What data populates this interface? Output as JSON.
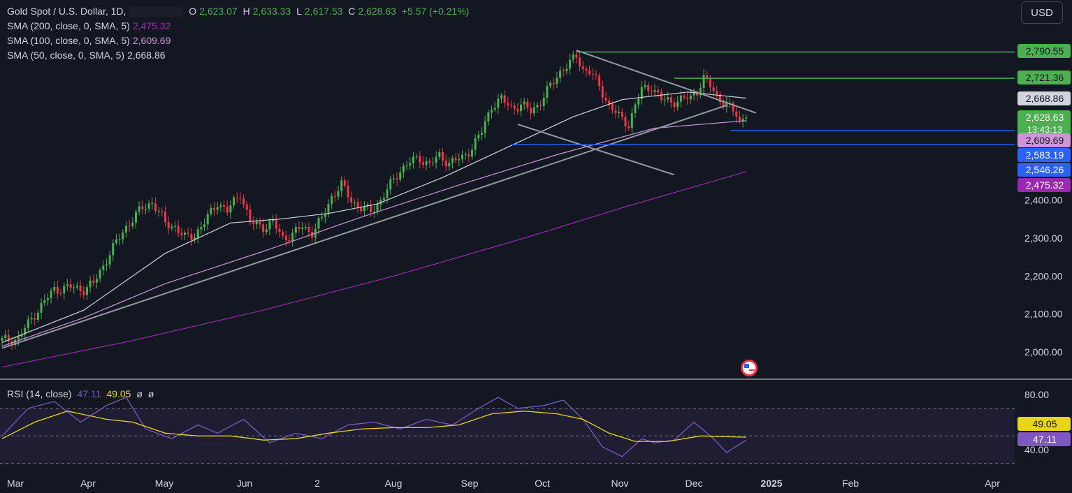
{
  "header": {
    "symbol": "Gold Spot / U.S. Dollar, 1D,",
    "open_label": "O",
    "open": "2,623.07",
    "high_label": "H",
    "high": "2,633.33",
    "low_label": "L",
    "low": "2,617.53",
    "close_label": "C",
    "close": "2,628.63",
    "change": "+5.57 (+0.21%)"
  },
  "indicators": [
    {
      "label": "SMA (200, close, 0, SMA, 5)",
      "value": "2,475.32",
      "color": "#9c27b0"
    },
    {
      "label": "SMA (100, close, 0, SMA, 5)",
      "value": "2,609.69",
      "color": "#ce93d8"
    },
    {
      "label": "SMA (50, close, 0, SMA, 5)",
      "value": "2,668.86",
      "color": "#d1d4dc"
    }
  ],
  "currency_button": "USD",
  "rsi_legend": {
    "label": "RSI (14, close)",
    "rsi": "47.11",
    "ma": "49.05",
    "extra1": "ø",
    "extra2": "ø"
  },
  "colors": {
    "background": "#131722",
    "up": "#4caf50",
    "down": "#f23645",
    "sma200": "#9c27b0",
    "sma100": "#ce93d8",
    "sma50": "#d1d4dc",
    "rsi": "#7e57c2",
    "rsi_ma": "#e8d419",
    "level_green": "#4caf50",
    "level_blue": "#2962ff"
  },
  "chart_data": [
    {
      "type": "candlestick",
      "title": "Gold Spot / U.S. Dollar, 1D",
      "x_ticks": [
        "Mar",
        "Apr",
        "May",
        "Jun",
        "2",
        "Aug",
        "Sep",
        "Oct",
        "Nov",
        "Dec",
        "2025",
        "Feb",
        "Apr"
      ],
      "y_ticks": [
        "2,000.00",
        "2,100.00",
        "2,200.00",
        "2,300.00",
        "2,400.00"
      ],
      "ylim": [
        1970,
        2830
      ],
      "price_path": [
        [
          0,
          2030
        ],
        [
          5,
          2035
        ],
        [
          10,
          2100
        ],
        [
          16,
          2165
        ],
        [
          21,
          2170
        ],
        [
          25,
          2165
        ],
        [
          28,
          2180
        ],
        [
          33,
          2260
        ],
        [
          38,
          2330
        ],
        [
          43,
          2380
        ],
        [
          46,
          2395
        ],
        [
          50,
          2340
        ],
        [
          53,
          2330
        ],
        [
          56,
          2300
        ],
        [
          59,
          2310
        ],
        [
          62,
          2340
        ],
        [
          66,
          2395
        ],
        [
          69,
          2370
        ],
        [
          73,
          2420
        ],
        [
          76,
          2340
        ],
        [
          80,
          2330
        ],
        [
          83,
          2340
        ],
        [
          86,
          2300
        ],
        [
          89,
          2310
        ],
        [
          92,
          2330
        ],
        [
          95,
          2315
        ],
        [
          98,
          2350
        ],
        [
          101,
          2410
        ],
        [
          104,
          2440
        ],
        [
          107,
          2400
        ],
        [
          110,
          2380
        ],
        [
          113,
          2370
        ],
        [
          116,
          2400
        ],
        [
          119,
          2440
        ],
        [
          122,
          2480
        ],
        [
          125,
          2500
        ],
        [
          128,
          2510
        ],
        [
          131,
          2495
        ],
        [
          134,
          2515
        ],
        [
          137,
          2500
        ],
        [
          141,
          2510
        ],
        [
          144,
          2540
        ],
        [
          147,
          2580
        ],
        [
          150,
          2650
        ],
        [
          153,
          2665
        ],
        [
          156,
          2645
        ],
        [
          159,
          2650
        ],
        [
          162,
          2635
        ],
        [
          165,
          2660
        ],
        [
          168,
          2700
        ],
        [
          171,
          2740
        ],
        [
          174,
          2760
        ],
        [
          176,
          2780
        ],
        [
          178,
          2745
        ],
        [
          180,
          2740
        ],
        [
          183,
          2700
        ],
        [
          186,
          2650
        ],
        [
          189,
          2620
        ],
        [
          192,
          2600
        ],
        [
          194,
          2650
        ],
        [
          196,
          2690
        ],
        [
          199,
          2700
        ],
        [
          202,
          2665
        ],
        [
          205,
          2660
        ],
        [
          208,
          2665
        ],
        [
          211,
          2670
        ],
        [
          213,
          2690
        ],
        [
          215,
          2720
        ],
        [
          217,
          2700
        ],
        [
          219,
          2675
        ],
        [
          222,
          2650
        ],
        [
          225,
          2625
        ],
        [
          226,
          2605
        ],
        [
          228,
          2630
        ]
      ],
      "series": [
        {
          "name": "SMA (200, close, 0, SMA, 5)",
          "values": [
            [
              0,
              1960
            ],
            [
              40,
              2030
            ],
            [
              80,
              2110
            ],
            [
              120,
              2200
            ],
            [
              160,
              2300
            ],
            [
              190,
              2380
            ],
            [
              228,
              2475.32
            ]
          ]
        },
        {
          "name": "SMA (100, close, 0, SMA, 5)",
          "values": [
            [
              0,
              2015
            ],
            [
              25,
              2090
            ],
            [
              50,
              2180
            ],
            [
              80,
              2265
            ],
            [
              110,
              2355
            ],
            [
              140,
              2440
            ],
            [
              170,
              2520
            ],
            [
              200,
              2590
            ],
            [
              228,
              2609.69
            ]
          ]
        },
        {
          "name": "SMA (50, close, 0, SMA, 5)",
          "values": [
            [
              0,
              2025
            ],
            [
              25,
              2110
            ],
            [
              50,
              2260
            ],
            [
              70,
              2340
            ],
            [
              85,
              2350
            ],
            [
              100,
              2365
            ],
            [
              115,
              2390
            ],
            [
              135,
              2460
            ],
            [
              155,
              2540
            ],
            [
              175,
              2620
            ],
            [
              190,
              2665
            ],
            [
              210,
              2685
            ],
            [
              228,
              2668.86
            ]
          ]
        }
      ],
      "trendlines": [
        {
          "from": [
            0,
            2010
          ],
          "to": [
            222,
            2650
          ]
        },
        {
          "from": [
            176,
            2795
          ],
          "to": [
            231,
            2630
          ]
        },
        {
          "from": [
            158,
            2600
          ],
          "to": [
            206,
            2467
          ]
        }
      ],
      "levels": [
        {
          "value": "2,790.55",
          "price": 2790.55,
          "kind": "resistance"
        },
        {
          "value": "2,721.36",
          "price": 2721.36,
          "kind": "resistance"
        },
        {
          "value": "2,583.19",
          "price": 2583.19,
          "kind": "support"
        },
        {
          "value": "2,546.26",
          "price": 2546.26,
          "kind": "support"
        }
      ],
      "price_labels": [
        {
          "value": "2,790.55",
          "bg": "#4caf50",
          "fg": "#131722"
        },
        {
          "value": "2,721.36",
          "bg": "#4caf50",
          "fg": "#131722"
        },
        {
          "value": "2,668.86",
          "bg": "#d1d4dc",
          "fg": "#131722"
        },
        {
          "value": "2,628.63",
          "sub": "13:43:13",
          "bg": "#4caf50",
          "fg": "#ffffff"
        },
        {
          "value": "2,609.69",
          "bg": "#ce93d8",
          "fg": "#131722"
        },
        {
          "value": "2,583.19",
          "bg": "#2962ff",
          "fg": "#ffffff"
        },
        {
          "value": "2,546.26",
          "bg": "#2962ff",
          "fg": "#ffffff"
        },
        {
          "value": "2,475.32",
          "bg": "#9c27b0",
          "fg": "#ffffff"
        }
      ]
    },
    {
      "type": "line",
      "title": "RSI (14, close)",
      "y_ticks": [
        "80.00",
        "40.00"
      ],
      "ylim": [
        30,
        90
      ],
      "band": [
        30,
        70
      ],
      "series": [
        {
          "name": "RSI",
          "values": [
            [
              0,
              50
            ],
            [
              8,
              70
            ],
            [
              16,
              75
            ],
            [
              24,
              60
            ],
            [
              32,
              72
            ],
            [
              38,
              78
            ],
            [
              44,
              55
            ],
            [
              52,
              48
            ],
            [
              60,
              58
            ],
            [
              66,
              52
            ],
            [
              74,
              62
            ],
            [
              82,
              45
            ],
            [
              90,
              52
            ],
            [
              98,
              48
            ],
            [
              106,
              58
            ],
            [
              114,
              60
            ],
            [
              122,
              55
            ],
            [
              130,
              62
            ],
            [
              138,
              58
            ],
            [
              146,
              70
            ],
            [
              152,
              78
            ],
            [
              158,
              70
            ],
            [
              166,
              72
            ],
            [
              172,
              76
            ],
            [
              178,
              62
            ],
            [
              184,
              42
            ],
            [
              190,
              35
            ],
            [
              196,
              48
            ],
            [
              200,
              45
            ],
            [
              206,
              47
            ],
            [
              212,
              60
            ],
            [
              218,
              48
            ],
            [
              222,
              38
            ],
            [
              228,
              47.11
            ]
          ]
        },
        {
          "name": "RSI MA",
          "values": [
            [
              0,
              48
            ],
            [
              10,
              60
            ],
            [
              20,
              68
            ],
            [
              32,
              62
            ],
            [
              40,
              60
            ],
            [
              50,
              52
            ],
            [
              60,
              50
            ],
            [
              70,
              50
            ],
            [
              80,
              47
            ],
            [
              90,
              48
            ],
            [
              100,
              52
            ],
            [
              110,
              55
            ],
            [
              120,
              56
            ],
            [
              130,
              56
            ],
            [
              140,
              58
            ],
            [
              150,
              66
            ],
            [
              160,
              68
            ],
            [
              170,
              66
            ],
            [
              178,
              62
            ],
            [
              186,
              52
            ],
            [
              194,
              46
            ],
            [
              204,
              46
            ],
            [
              214,
              50
            ],
            [
              228,
              49.05
            ]
          ]
        }
      ],
      "price_labels": [
        {
          "value": "49.05",
          "bg": "#e8d419",
          "fg": "#131722"
        },
        {
          "value": "47.11",
          "bg": "#7e57c2",
          "fg": "#ffffff"
        }
      ]
    }
  ],
  "time_axis_labels": [
    "Mar",
    "Apr",
    "May",
    "Jun",
    "2",
    "Aug",
    "Sep",
    "Oct",
    "Nov",
    "Dec",
    "2025",
    "Feb",
    "Apr"
  ],
  "flag": "us-flag-icon"
}
